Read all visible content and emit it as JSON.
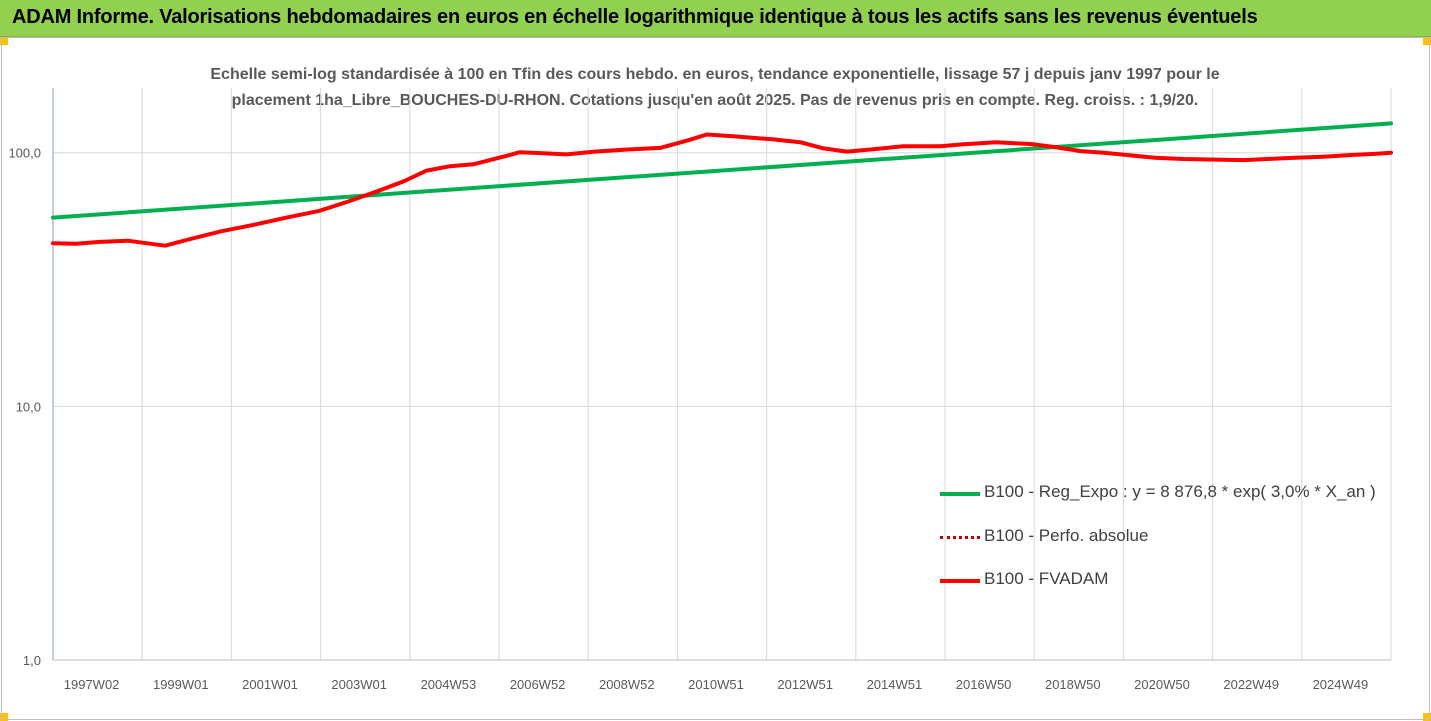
{
  "window": {
    "title": "ADAM Informe. Valorisations hebdomadaires en euros en échelle logarithmique identique à tous les actifs sans les revenus éventuels"
  },
  "colors": {
    "title_bg": "#92d050",
    "corner_marks": "#ffc000",
    "reg_series": "#00b050",
    "fvadam_series": "#ff0000",
    "perfo_series": "#c00000",
    "grid": "#d9d9d9"
  },
  "chart_data": {
    "type": "line",
    "title_line1": "Echelle semi-log standardisée à 100 en Tfin des cours hebdo. en euros, tendance exponentielle, lissage 57 j depuis janv 1997 pour le",
    "title_line2": "placement 1ha_Libre_BOUCHES-DU-RHON. Cotations jusqu'en août 2025. Pas de revenus pris en compte. Reg. croiss. : 1,9/20.",
    "y_scale": "log",
    "ylim": [
      1,
      180
    ],
    "y_ticks": [
      "1,0",
      "10,0",
      "100,0"
    ],
    "x_range": [
      1997.0,
      2025.65
    ],
    "x_ticks": [
      "1997W02",
      "1999W01",
      "2001W01",
      "2003W01",
      "2004W53",
      "2006W52",
      "2008W52",
      "2010W51",
      "2012W51",
      "2014W51",
      "2016W50",
      "2018W50",
      "2020W50",
      "2022W49",
      "2024W49"
    ],
    "legend_position": "right-center",
    "legend": [
      "B100 - Reg_Expo : y = 8 876,8 * exp( 3,0% *  X_an )",
      "B100 - Perfo. absolue",
      "B100 - FVADAM"
    ],
    "series": [
      {
        "name": "B100 - Reg_Expo : y = 8 876,8 * exp( 3,0% *  X_an )",
        "x": [
          1997.0,
          2025.65
        ],
        "y": [
          55.5,
          130.5
        ]
      },
      {
        "name": "B100 - Perfo. absolue",
        "x": [],
        "y": []
      },
      {
        "name": "B100 - FVADAM",
        "x": [
          1997.0,
          1997.5,
          1998.0,
          1998.6,
          1999.0,
          1999.4,
          1999.9,
          2000.6,
          2001.3,
          2002.0,
          2002.7,
          2003.3,
          2003.9,
          2004.5,
          2005.0,
          2005.5,
          2006.0,
          2006.6,
          2007.0,
          2007.5,
          2008.0,
          2008.6,
          2009.3,
          2010.0,
          2010.6,
          2011.0,
          2011.6,
          2012.4,
          2013.0,
          2013.5,
          2014.0,
          2014.5,
          2015.2,
          2016.0,
          2016.5,
          2017.2,
          2018.0,
          2018.5,
          2019.0,
          2019.5,
          2020.0,
          2020.6,
          2021.2,
          2021.9,
          2022.5,
          2023.0,
          2023.6,
          2024.2,
          2024.8,
          2025.3,
          2025.65
        ],
        "y": [
          44,
          43.8,
          44.5,
          45,
          44,
          43,
          45.5,
          49,
          52,
          55.5,
          59,
          64,
          70,
          77,
          85,
          88.5,
          90,
          96,
          100.5,
          99.5,
          98.5,
          101,
          103,
          104.5,
          112,
          118,
          116,
          113,
          110,
          104,
          101,
          103,
          106,
          106,
          108,
          110,
          108,
          105,
          101.5,
          100,
          98,
          95.5,
          94.5,
          94,
          93.5,
          94.5,
          95.5,
          96.5,
          98,
          99,
          100
        ]
      }
    ]
  }
}
